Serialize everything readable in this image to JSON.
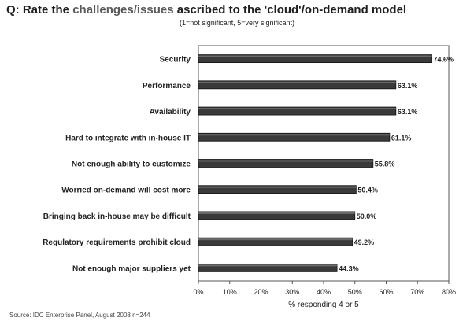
{
  "chart_data": {
    "type": "bar",
    "orientation": "horizontal",
    "title_prefix": "Q: Rate the ",
    "title_highlight": "challenges/issues",
    "title_suffix": " ascribed to the 'cloud'/on-demand model",
    "subtitle": "(1=not significant, 5=very significant)",
    "categories": [
      "Security",
      "Performance",
      "Availability",
      "Hard to integrate with in-house IT",
      "Not enough ability to customize",
      "Worried on-demand will cost more",
      "Bringing back in-house may be difficult",
      "Regulatory requirements prohibit cloud",
      "Not enough major suppliers yet"
    ],
    "values": [
      74.6,
      63.1,
      63.1,
      61.1,
      55.8,
      50.4,
      50.0,
      49.2,
      44.3
    ],
    "data_labels": [
      "74.6%",
      "63.1%",
      "63.1%",
      "61.1%",
      "55.8%",
      "50.4%",
      "50.0%",
      "49.2%",
      "44.3%"
    ],
    "xlim": [
      0,
      80
    ],
    "xticks": [
      0,
      10,
      20,
      30,
      40,
      50,
      60,
      70,
      80
    ],
    "xtick_labels": [
      "0%",
      "10%",
      "20%",
      "30%",
      "40%",
      "50%",
      "60%",
      "70%",
      "80%"
    ],
    "xlabel": "% responding 4 or 5",
    "ylabel": "",
    "grid": false,
    "legend": "none",
    "bar_color": "#3a3a3a",
    "source": "Source: IDC Enterprise Panel, August 2008  n=244"
  }
}
